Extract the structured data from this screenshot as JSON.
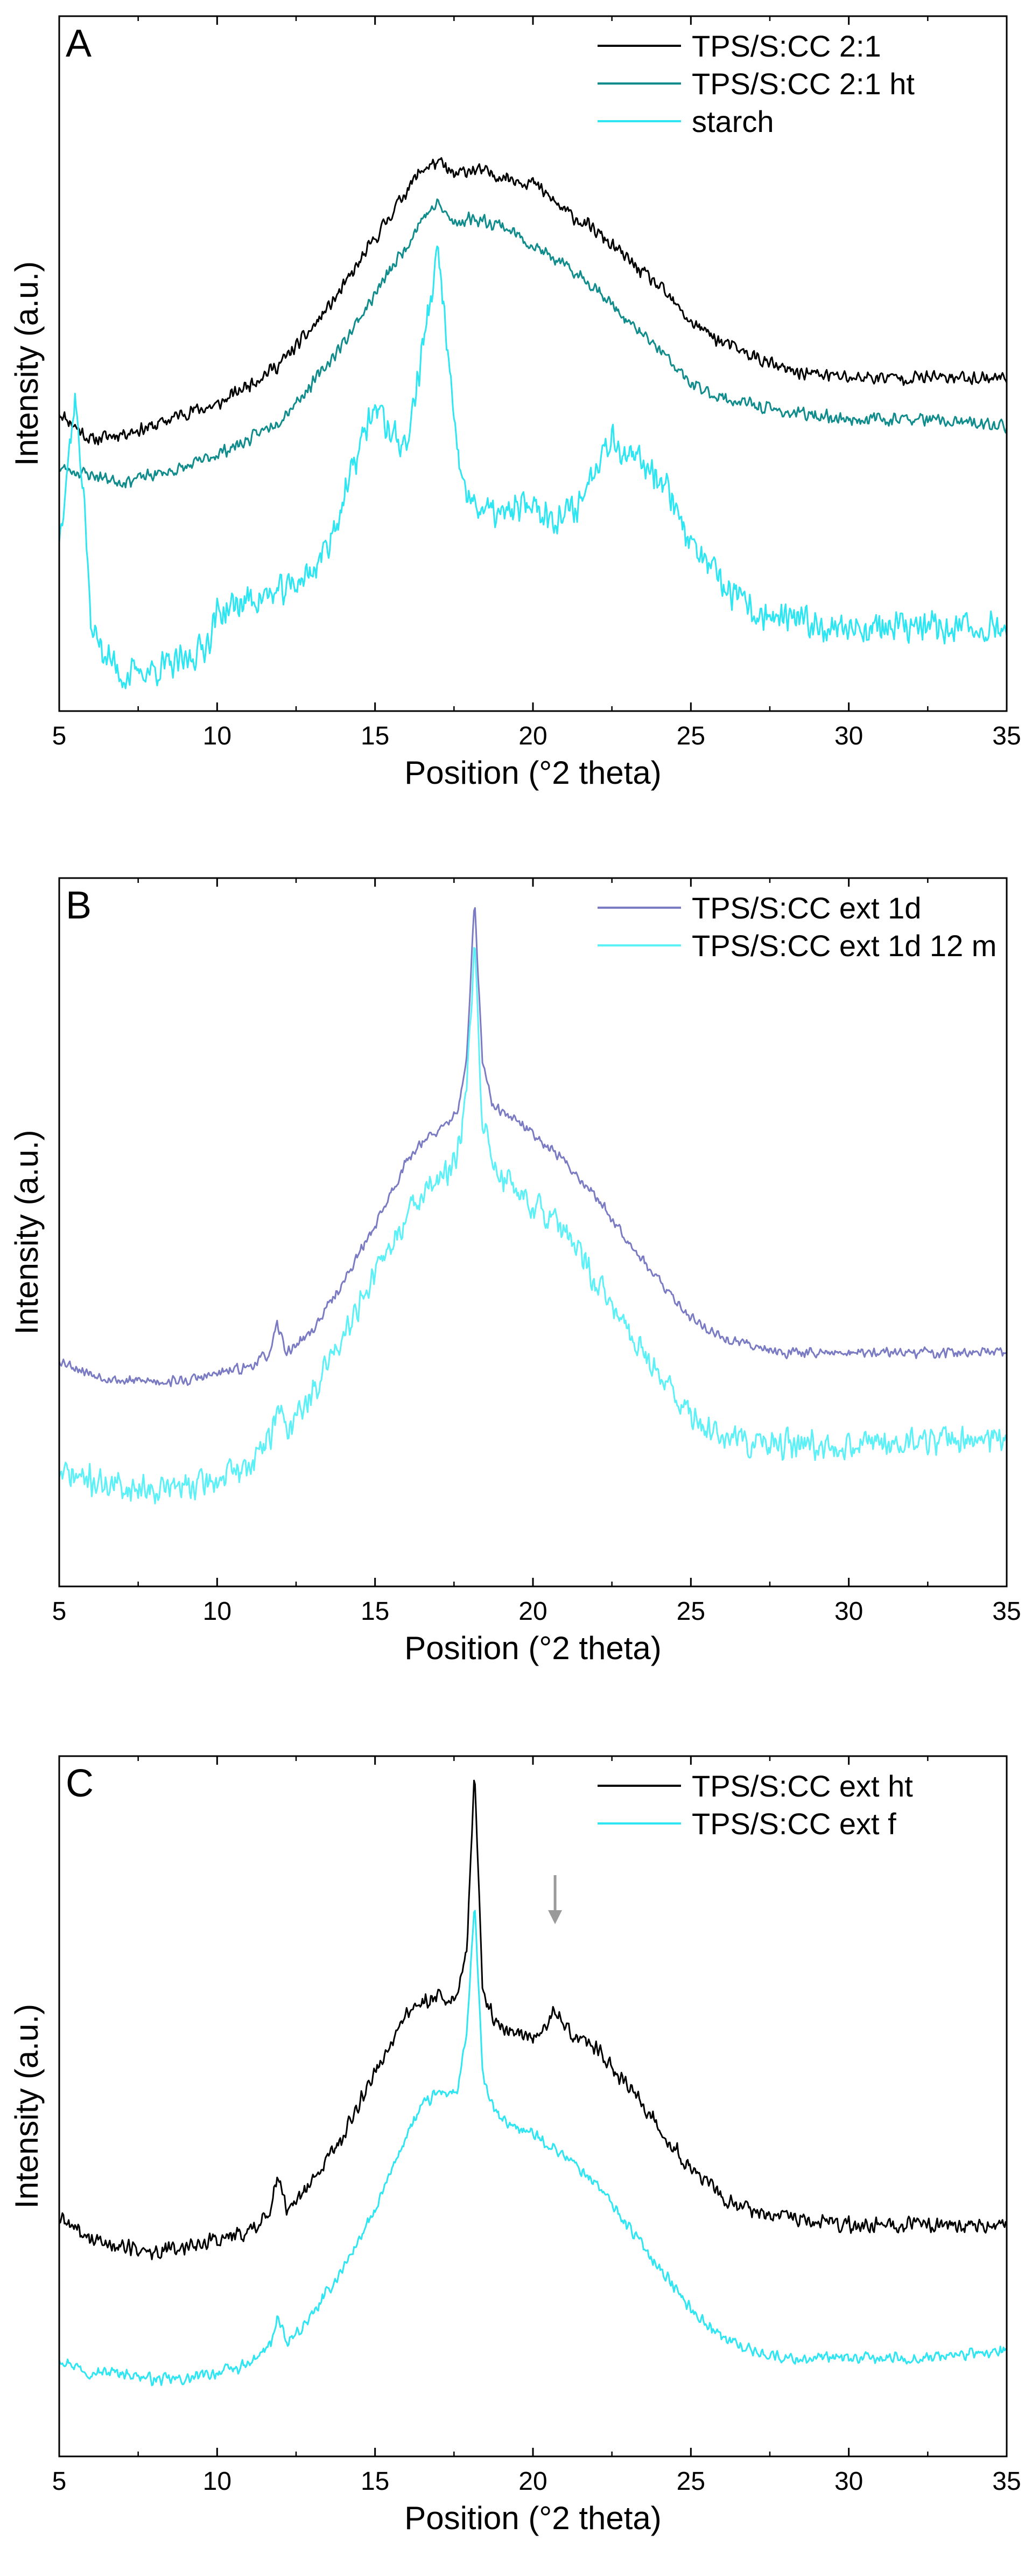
{
  "chart_data": [
    {
      "type": "line",
      "panel_label": "A",
      "xlabel": "Position (°2 theta)",
      "ylabel": "Intensity (a.u.)",
      "xlim": [
        5,
        35
      ],
      "ylim": [
        0,
        1
      ],
      "xticks": [
        "5",
        "10",
        "15",
        "20",
        "25",
        "30",
        "35"
      ],
      "legend_position": "top-right",
      "series": [
        {
          "name": "TPS/S:CC 2:1",
          "color": "#000000",
          "noise": 0.012,
          "seed": 11,
          "x": [
            5,
            6,
            7,
            8,
            9,
            10,
            11,
            12,
            13,
            14,
            15,
            16,
            16.5,
            17,
            17.5,
            18,
            19,
            20,
            21,
            22,
            23,
            24,
            25,
            26,
            27,
            28,
            30,
            32,
            35
          ],
          "y": [
            0.43,
            0.39,
            0.4,
            0.41,
            0.43,
            0.44,
            0.47,
            0.5,
            0.55,
            0.61,
            0.68,
            0.75,
            0.78,
            0.79,
            0.77,
            0.78,
            0.77,
            0.76,
            0.72,
            0.69,
            0.65,
            0.61,
            0.56,
            0.53,
            0.51,
            0.49,
            0.48,
            0.48,
            0.48
          ]
        },
        {
          "name": "TPS/S:CC 2:1 ht",
          "color": "#108c8c",
          "noise": 0.011,
          "seed": 23,
          "x": [
            5,
            6,
            7,
            8,
            9,
            10,
            11,
            12,
            13,
            14,
            15,
            16,
            16.5,
            17,
            17.5,
            18,
            19,
            20,
            21,
            22,
            23,
            24,
            25,
            26,
            27,
            28,
            30,
            32,
            35
          ],
          "y": [
            0.35,
            0.34,
            0.33,
            0.34,
            0.35,
            0.37,
            0.39,
            0.42,
            0.47,
            0.53,
            0.6,
            0.67,
            0.71,
            0.73,
            0.7,
            0.71,
            0.7,
            0.67,
            0.64,
            0.61,
            0.56,
            0.52,
            0.47,
            0.45,
            0.44,
            0.43,
            0.42,
            0.42,
            0.41
          ]
        },
        {
          "name": "starch",
          "color": "#2ee6f2",
          "noise": 0.028,
          "seed": 37,
          "x": [
            5,
            5.5,
            5.8,
            6.0,
            6.5,
            7,
            8,
            9,
            9.7,
            10,
            11,
            12,
            13,
            13.5,
            14,
            14.5,
            15,
            15.5,
            16,
            16.5,
            17.0,
            17.3,
            17.6,
            18,
            18.5,
            19,
            20,
            20.5,
            21,
            21.5,
            22,
            22.5,
            23,
            23.5,
            24,
            24.5,
            25,
            26,
            27,
            28,
            30,
            32,
            35
          ],
          "y": [
            0.25,
            0.45,
            0.3,
            0.12,
            0.08,
            0.05,
            0.06,
            0.07,
            0.1,
            0.14,
            0.16,
            0.17,
            0.2,
            0.24,
            0.3,
            0.38,
            0.44,
            0.4,
            0.38,
            0.52,
            0.66,
            0.52,
            0.36,
            0.3,
            0.29,
            0.28,
            0.3,
            0.28,
            0.28,
            0.3,
            0.36,
            0.4,
            0.36,
            0.36,
            0.34,
            0.3,
            0.24,
            0.18,
            0.14,
            0.13,
            0.12,
            0.12,
            0.12
          ]
        }
      ]
    },
    {
      "type": "line",
      "panel_label": "B",
      "xlabel": "Position (°2 theta)",
      "ylabel": "Intensity (a.u.)",
      "xlim": [
        5,
        35
      ],
      "ylim": [
        0,
        1
      ],
      "xticks": [
        "5",
        "10",
        "15",
        "20",
        "25",
        "30",
        "35"
      ],
      "legend_position": "top-right",
      "series": [
        {
          "name": "TPS/S:CC ext 1d",
          "color": "#7b7bc4",
          "noise": 0.009,
          "seed": 53,
          "x": [
            5,
            6,
            7,
            8,
            9,
            10,
            11,
            11.7,
            11.9,
            12.2,
            13,
            14,
            15,
            16,
            16.5,
            17,
            17.6,
            17.9,
            18.15,
            18.4,
            18.7,
            19,
            20,
            21,
            22,
            23,
            24,
            25,
            26,
            27,
            28,
            30,
            35
          ],
          "y": [
            0.32,
            0.3,
            0.29,
            0.29,
            0.29,
            0.3,
            0.31,
            0.33,
            0.37,
            0.33,
            0.36,
            0.43,
            0.51,
            0.6,
            0.63,
            0.64,
            0.67,
            0.74,
            0.97,
            0.74,
            0.68,
            0.67,
            0.64,
            0.6,
            0.55,
            0.49,
            0.43,
            0.38,
            0.35,
            0.34,
            0.33,
            0.33,
            0.33
          ]
        },
        {
          "name": "TPS/S:CC ext 1d 12 m",
          "color": "#5cf0f7",
          "noise": 0.025,
          "seed": 71,
          "x": [
            5,
            6,
            7,
            8,
            9,
            10,
            11,
            11.7,
            11.9,
            12.2,
            13,
            14,
            15,
            16,
            16.5,
            17,
            17.6,
            17.9,
            18.15,
            18.4,
            18.7,
            19,
            20,
            21,
            22,
            23,
            24,
            25,
            26,
            27,
            28,
            30,
            35
          ],
          "y": [
            0.16,
            0.15,
            0.14,
            0.14,
            0.14,
            0.15,
            0.17,
            0.21,
            0.26,
            0.22,
            0.27,
            0.36,
            0.44,
            0.52,
            0.56,
            0.57,
            0.6,
            0.7,
            0.9,
            0.66,
            0.6,
            0.58,
            0.54,
            0.5,
            0.43,
            0.36,
            0.3,
            0.24,
            0.21,
            0.2,
            0.2,
            0.2,
            0.21
          ]
        }
      ]
    },
    {
      "type": "line",
      "panel_label": "C",
      "xlabel": "Position (°2 theta)",
      "ylabel": "Intensity (a.u.)",
      "xlim": [
        5,
        35
      ],
      "ylim": [
        0,
        1
      ],
      "xticks": [
        "5",
        "10",
        "15",
        "20",
        "25",
        "30",
        "35"
      ],
      "legend_position": "top-right",
      "annotation": {
        "type": "arrow",
        "x": 20.7,
        "y_top": 0.83,
        "y_bottom": 0.76
      },
      "series": [
        {
          "name": "TPS/S:CC ext ht",
          "color": "#000000",
          "noise": 0.014,
          "seed": 89,
          "x": [
            5,
            6,
            7,
            8,
            9,
            10,
            11,
            11.7,
            11.9,
            12.2,
            13,
            14,
            15,
            16,
            16.5,
            17,
            17.6,
            17.9,
            18.15,
            18.4,
            18.7,
            19,
            20,
            20.5,
            20.7,
            21,
            22,
            23,
            24,
            25,
            26,
            27,
            28,
            30,
            35
          ],
          "y": [
            0.34,
            0.31,
            0.3,
            0.29,
            0.3,
            0.31,
            0.32,
            0.35,
            0.4,
            0.35,
            0.39,
            0.46,
            0.55,
            0.63,
            0.65,
            0.66,
            0.65,
            0.72,
            0.98,
            0.67,
            0.63,
            0.61,
            0.6,
            0.62,
            0.64,
            0.61,
            0.58,
            0.53,
            0.47,
            0.41,
            0.37,
            0.35,
            0.34,
            0.33,
            0.33
          ]
        },
        {
          "name": "TPS/S:CC ext f",
          "color": "#2ee6f2",
          "noise": 0.01,
          "seed": 97,
          "x": [
            5,
            6,
            7,
            8,
            9,
            10,
            11,
            11.7,
            11.9,
            12.2,
            13,
            14,
            15,
            16,
            16.5,
            17,
            17.6,
            17.9,
            18.15,
            18.4,
            18.7,
            19,
            20,
            21,
            22,
            23,
            24,
            25,
            26,
            27,
            28,
            30,
            32,
            35
          ],
          "y": [
            0.14,
            0.12,
            0.12,
            0.11,
            0.11,
            0.12,
            0.13,
            0.16,
            0.2,
            0.16,
            0.2,
            0.27,
            0.35,
            0.46,
            0.5,
            0.52,
            0.52,
            0.6,
            0.79,
            0.55,
            0.5,
            0.48,
            0.46,
            0.43,
            0.39,
            0.33,
            0.27,
            0.21,
            0.17,
            0.15,
            0.14,
            0.14,
            0.14,
            0.15
          ]
        }
      ]
    }
  ]
}
